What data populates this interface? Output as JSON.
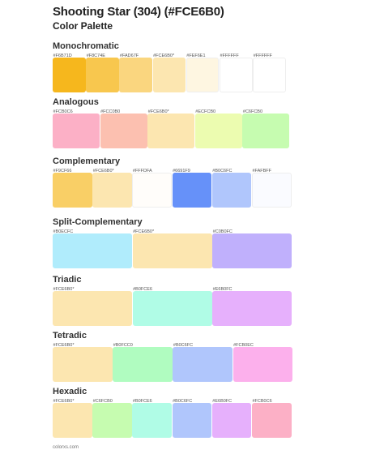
{
  "title": "Shooting Star (304) (#FCE6B0)",
  "subtitle": "Color Palette",
  "footer": "colorxs.com",
  "sections": [
    {
      "name": "Monochromatic",
      "swatches": [
        {
          "code": "#F6B71D",
          "color": "#F6B71D"
        },
        {
          "code": "#F8C74E",
          "color": "#F8C74E"
        },
        {
          "code": "#FAD67F",
          "color": "#FAD67F"
        },
        {
          "code": "#FCE6B0*",
          "color": "#FCE6B0"
        },
        {
          "code": "#FEF6E1",
          "color": "#FEF6E1"
        },
        {
          "code": "#FFFFFF",
          "color": "#FFFFFF"
        },
        {
          "code": "#FFFFFF",
          "color": "#FFFFFF"
        }
      ]
    },
    {
      "name": "Analogous",
      "swatches": [
        {
          "code": "#FCB0C6",
          "color": "#FCB0C6"
        },
        {
          "code": "#FCC0B0",
          "color": "#FCC0B0"
        },
        {
          "code": "#FCE6B0*",
          "color": "#FCE6B0"
        },
        {
          "code": "#ECFCB0",
          "color": "#ECFCB0"
        },
        {
          "code": "#C6FCB0",
          "color": "#C6FCB0"
        }
      ]
    },
    {
      "name": "Complementary",
      "swatches": [
        {
          "code": "#F9CF66",
          "color": "#F9CF66"
        },
        {
          "code": "#FCE6B0*",
          "color": "#FCE6B0"
        },
        {
          "code": "#FFFDFA",
          "color": "#FFFDFA"
        },
        {
          "code": "#6691F9",
          "color": "#6691F9"
        },
        {
          "code": "#B0C6FC",
          "color": "#B0C6FC"
        },
        {
          "code": "#FAFBFF",
          "color": "#FAFBFF"
        }
      ]
    },
    {
      "name": "Split-Complementary",
      "swatches": [
        {
          "code": "#B0ECFC",
          "color": "#B0ECFC"
        },
        {
          "code": "#FCE6B0*",
          "color": "#FCE6B0"
        },
        {
          "code": "#C0B0FC",
          "color": "#C0B0FC"
        }
      ]
    },
    {
      "name": "Triadic",
      "swatches": [
        {
          "code": "#FCE6B0*",
          "color": "#FCE6B0"
        },
        {
          "code": "#B0FCE6",
          "color": "#B0FCE6"
        },
        {
          "code": "#E6B0FC",
          "color": "#E6B0FC"
        }
      ]
    },
    {
      "name": "Tetradic",
      "swatches": [
        {
          "code": "#FCE6B0*",
          "color": "#FCE6B0"
        },
        {
          "code": "#B0FCC0",
          "color": "#B0FCC0"
        },
        {
          "code": "#B0C6FC",
          "color": "#B0C6FC"
        },
        {
          "code": "#FCB0EC",
          "color": "#FCB0EC"
        }
      ]
    },
    {
      "name": "Hexadic",
      "swatches": [
        {
          "code": "#FCE6B0*",
          "color": "#FCE6B0"
        },
        {
          "code": "#C6FCB0",
          "color": "#C6FCB0"
        },
        {
          "code": "#B0FCE6",
          "color": "#B0FCE6"
        },
        {
          "code": "#B0C6FC",
          "color": "#B0C6FC"
        },
        {
          "code": "#E6B0FC",
          "color": "#E6B0FC"
        },
        {
          "code": "#FCB0C6",
          "color": "#FCB0C6"
        }
      ]
    }
  ]
}
